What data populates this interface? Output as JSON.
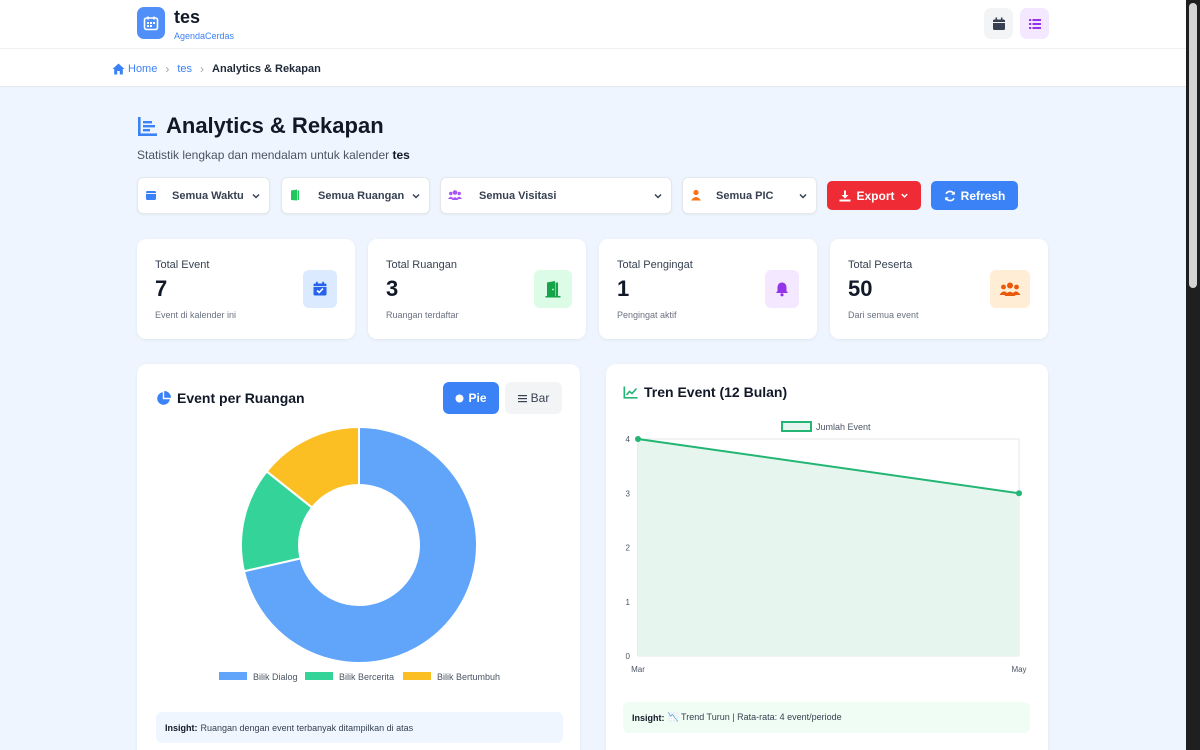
{
  "app": {
    "title": "tes",
    "subtitle": "AgendaCerdas"
  },
  "breadcrumb": {
    "home": "Home",
    "calendar": "tes",
    "current": "Analytics & Rekapan"
  },
  "page": {
    "title": "Analytics & Rekapan",
    "subtitle_prefix": "Statistik lengkap dan mendalam untuk kalender",
    "subtitle_calendar": "tes"
  },
  "filters": {
    "time": "Semua Waktu",
    "room": "Semua Ruangan",
    "visibility": "Semua Visitasi",
    "pic": "Semua PIC"
  },
  "actions": {
    "export": "Export",
    "refresh": "Refresh"
  },
  "stats": [
    {
      "title": "Total Event",
      "value": "7",
      "desc": "Event di kalender ini",
      "icon": "calendar-check-icon",
      "color": "#2563eb",
      "bg": "#dbeafe"
    },
    {
      "title": "Total Ruangan",
      "value": "3",
      "desc": "Ruangan terdaftar",
      "icon": "door-open-icon",
      "color": "#16a34a",
      "bg": "#dcfce7"
    },
    {
      "title": "Total Pengingat",
      "value": "1",
      "desc": "Pengingat aktif",
      "icon": "bell-icon",
      "color": "#9333ea",
      "bg": "#f3e8ff"
    },
    {
      "title": "Total Peserta",
      "value": "50",
      "desc": "Dari semua event",
      "icon": "users-icon",
      "color": "#ea580c",
      "bg": "#ffedd5"
    }
  ],
  "room_panel": {
    "title": "Event per Ruangan",
    "pie_label": "Pie",
    "bar_label": "Bar",
    "insight_label": "Insight:",
    "insight_text": "Ruangan dengan event terbanyak ditampilkan di atas"
  },
  "trend_panel": {
    "title": "Tren Event (12 Bulan)",
    "insight_label": "Insight:",
    "insight_text": "📉 Trend Turun | Rata-rata: 4 event/periode"
  },
  "chart_data": [
    {
      "type": "pie",
      "variant": "doughnut",
      "categories": [
        "Bilik Dialog",
        "Bilik Bercerita",
        "Bilik Bertumbuh"
      ],
      "values": [
        5,
        1,
        1
      ],
      "colors": [
        "#60a5fa",
        "#34d399",
        "#fbbf24"
      ],
      "legend": "bottom"
    },
    {
      "type": "area",
      "x": [
        "Mar",
        "May"
      ],
      "series": [
        {
          "name": "Jumlah Event",
          "values": [
            4,
            3
          ]
        }
      ],
      "ylim": [
        0,
        4
      ],
      "yticks": [
        0,
        1,
        2,
        3,
        4
      ],
      "grid": true,
      "legend": "top",
      "colors": {
        "line": "#22b573",
        "fill": "#e6f6ee"
      }
    }
  ]
}
